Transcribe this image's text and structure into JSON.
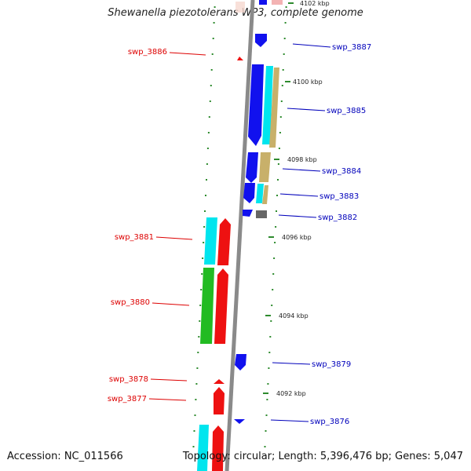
{
  "title": "Shewanella piezotolerans WP3, complete genome",
  "footer": {
    "accession": "Accession: NC_011566",
    "info": "Topology: circular; Length: 5,396,476 bp; Genes: 5,047"
  },
  "colors": {
    "forward_label": "#dd0000",
    "reverse_label": "#0000bb",
    "backbone": "#8a8a8a",
    "tick": "#2e8b2e",
    "blue_gene": "#1111ee",
    "red_gene": "#ee1111",
    "cyan_gene": "#00e5ee",
    "green_gene": "#22bb22",
    "khaki_gene": "#c8b06a",
    "gray_gene": "#666666"
  },
  "kbp_labels": [
    "4102 kbp",
    "4100 kbp",
    "4098 kbp",
    "4096 kbp",
    "4094 kbp",
    "4092 kbp"
  ],
  "gene_labels": {
    "left": [
      "swp_3886",
      "swp_3881",
      "swp_3880",
      "swp_3878",
      "swp_3877"
    ],
    "right": [
      "swp_3887",
      "swp_3885",
      "swp_3884",
      "swp_3883",
      "swp_3882",
      "swp_3879",
      "swp_3876"
    ]
  }
}
